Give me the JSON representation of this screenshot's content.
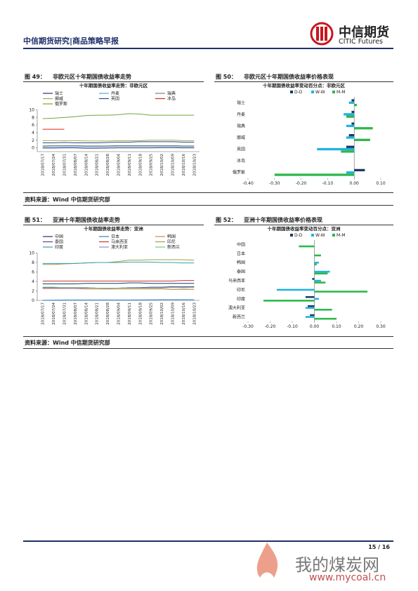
{
  "header": {
    "title": "中信期货研究|商品策略早报",
    "logo_cn": "中信期货",
    "logo_en": "CITIC Futures"
  },
  "figures": [
    {
      "label": "图 49：",
      "caption": "非欧元区十年期国债收益率走势",
      "chart_data": {
        "type": "line",
        "title": "十年期国债收益率走势：非欧元区",
        "categories": [
          "2018/07/17",
          "2018/07/24",
          "2018/07/31",
          "2018/08/07",
          "2018/08/14",
          "2018/08/21",
          "2018/08/28",
          "2018/09/04",
          "2018/09/11",
          "2018/09/18",
          "2018/09/25",
          "2018/10/02",
          "2018/10/09",
          "2018/10/16",
          "2018/10/23"
        ],
        "ylim": [
          -1,
          10
        ],
        "yticks": [
          0,
          2,
          4,
          6,
          8,
          10
        ],
        "series": [
          {
            "name": "瑞士",
            "color": "#1f3864",
            "values": [
              -0.05,
              -0.05,
              0,
              0,
              -0.1,
              -0.1,
              -0.05,
              0,
              0,
              0,
              0,
              0.05,
              0.05,
              0,
              0
            ]
          },
          {
            "name": "丹麦",
            "color": "#5ba3d9",
            "values": [
              0.3,
              0.3,
              0.35,
              0.35,
              0.3,
              0.3,
              0.35,
              0.4,
              0.4,
              0.4,
              0.4,
              0.4,
              0.4,
              0.35,
              0.35
            ]
          },
          {
            "name": "瑞典",
            "color": "#7f7f7f",
            "values": [
              0.5,
              0.6,
              0.6,
              0.6,
              0.5,
              0.5,
              0.5,
              0.6,
              0.6,
              0.6,
              0.6,
              0.6,
              0.6,
              0.5,
              0.5
            ]
          },
          {
            "name": "挪威",
            "color": "#a5a55a",
            "values": [
              1.9,
              1.9,
              1.9,
              1.9,
              1.8,
              1.8,
              1.8,
              1.9,
              1.9,
              1.9,
              2.0,
              2.0,
              2.0,
              1.9,
              1.9
            ]
          },
          {
            "name": "英国",
            "color": "#2e4a8a",
            "values": [
              1.3,
              1.3,
              1.4,
              1.3,
              1.3,
              1.3,
              1.4,
              1.5,
              1.5,
              1.6,
              1.6,
              1.6,
              1.6,
              1.5,
              1.5
            ]
          },
          {
            "name": "冰岛",
            "color": "#e02020",
            "values": [
              4.9,
              4.9,
              4.9,
              null,
              null,
              null,
              null,
              null,
              null,
              null,
              null,
              null,
              null,
              null,
              null
            ]
          },
          {
            "name": "俄罗斯",
            "color": "#70a83a",
            "values": [
              7.7,
              7.8,
              8.0,
              8.2,
              8.5,
              8.6,
              8.6,
              8.7,
              9.0,
              8.9,
              8.6,
              8.6,
              8.6,
              8.6,
              8.6
            ]
          }
        ]
      }
    },
    {
      "label": "图 50：",
      "caption": "非欧元区十年期国债收益率价格表现",
      "chart_data": {
        "type": "hbar",
        "title": "十年期国债收益率变动百分点：非欧元区",
        "categories": [
          "瑞士",
          "丹麦",
          "瑞典",
          "挪威",
          "英国",
          "冰岛",
          "俄罗斯"
        ],
        "xlim": [
          -0.4,
          0.1
        ],
        "xticks": [
          {
            "value": -0.4,
            "label": "-0.40"
          },
          {
            "value": -0.3,
            "label": "-0.30"
          },
          {
            "value": -0.2,
            "label": "-0.20"
          },
          {
            "value": -0.1,
            "label": "-0.10"
          },
          {
            "value": 0,
            "label": "0.00"
          },
          {
            "value": 0.1,
            "label": "0.10"
          }
        ],
        "series": [
          {
            "name": "D-D",
            "color": "#1f3864",
            "values": [
              -0.01,
              -0.01,
              -0.01,
              -0.02,
              -0.03,
              null,
              0.04
            ]
          },
          {
            "name": "W-W",
            "color": "#1fb4e0",
            "values": [
              -0.02,
              -0.04,
              -0.03,
              -0.03,
              -0.14,
              null,
              -0.03
            ]
          },
          {
            "name": "M-M",
            "color": "#2db84a",
            "values": [
              0.01,
              -0.03,
              0.07,
              0.06,
              -0.05,
              null,
              -0.3
            ]
          }
        ]
      }
    },
    {
      "label": "图 51：",
      "caption": "亚洲十年期国债收益率走势",
      "chart_data": {
        "type": "line",
        "title": "十年期国债收益率走势：亚洲",
        "categories": [
          "2018/07/17",
          "2018/07/24",
          "2018/07/31",
          "2018/08/07",
          "2018/08/14",
          "2018/08/21",
          "2018/08/28",
          "2018/09/04",
          "2018/09/11",
          "2018/09/18",
          "2018/09/25",
          "2018/10/02",
          "2018/10/09",
          "2018/10/16",
          "2018/10/23"
        ],
        "ylim": [
          0,
          10
        ],
        "yticks": [
          0,
          2,
          4,
          6,
          8,
          10
        ],
        "series": [
          {
            "name": "中国",
            "color": "#1f3864",
            "values": [
              3.5,
              3.5,
              3.5,
              3.5,
              3.6,
              3.6,
              3.6,
              3.6,
              3.7,
              3.7,
              3.6,
              3.6,
              3.6,
              3.6,
              3.6
            ]
          },
          {
            "name": "日本",
            "color": "#2a7fd4",
            "values": [
              0.04,
              0.05,
              0.1,
              0.1,
              0.1,
              0.1,
              0.1,
              0.1,
              0.1,
              0.12,
              0.13,
              0.15,
              0.15,
              0.15,
              0.15
            ]
          },
          {
            "name": "韩国",
            "color": "#c98a50",
            "values": [
              2.5,
              2.5,
              2.5,
              2.5,
              2.4,
              2.4,
              2.4,
              2.4,
              2.4,
              2.4,
              2.4,
              2.4,
              2.3,
              2.3,
              2.3
            ]
          },
          {
            "name": "泰国",
            "color": "#4a4a8a",
            "values": [
              2.7,
              2.7,
              2.7,
              2.7,
              2.7,
              2.6,
              2.6,
              2.6,
              2.7,
              2.7,
              2.8,
              2.8,
              2.9,
              2.9,
              2.9
            ]
          },
          {
            "name": "马来西亚",
            "color": "#c0392b",
            "values": [
              4.1,
              4.1,
              4.1,
              4.1,
              4.1,
              4.1,
              4.1,
              4.1,
              4.1,
              4.1,
              4.1,
              4.1,
              4.1,
              4.2,
              4.2
            ]
          },
          {
            "name": "印尼",
            "color": "#9aa04a",
            "values": [
              7.6,
              7.6,
              7.7,
              7.8,
              7.9,
              8.0,
              8.0,
              8.2,
              8.5,
              8.5,
              8.6,
              8.6,
              8.6,
              8.6,
              8.5
            ]
          },
          {
            "name": "印度",
            "color": "#3aa0a0",
            "values": [
              7.8,
              7.8,
              7.8,
              7.8,
              7.9,
              8.0,
              8.0,
              8.0,
              8.1,
              8.1,
              8.1,
              8.0,
              8.0,
              7.9,
              7.9
            ]
          },
          {
            "name": "澳大利亚",
            "color": "#9b8ac0",
            "values": [
              2.6,
              2.6,
              2.6,
              2.5,
              2.6,
              2.6,
              2.5,
              2.6,
              2.7,
              2.6,
              2.7,
              2.7,
              2.7,
              2.7,
              2.7
            ]
          },
          {
            "name": "新西兰",
            "color": "#7fbf7f",
            "values": [
              2.8,
              2.8,
              2.7,
              2.7,
              2.7,
              2.6,
              2.6,
              2.6,
              2.6,
              2.6,
              2.6,
              2.6,
              2.7,
              2.6,
              2.7
            ]
          }
        ]
      }
    },
    {
      "label": "图 52：",
      "caption": "亚洲十年期国债收益率价格表现",
      "chart_data": {
        "type": "hbar",
        "title": "十年期国债收益率变动百分点：亚洲",
        "categories": [
          "中国",
          "日本",
          "韩国",
          "泰国",
          "马来西亚",
          "印尼",
          "印度",
          "澳大利亚",
          "新西兰"
        ],
        "xlim": [
          -0.3,
          0.3
        ],
        "xticks": [
          {
            "value": -0.3,
            "label": "-0.30"
          },
          {
            "value": -0.2,
            "label": "-0.20"
          },
          {
            "value": -0.1,
            "label": "-0.10"
          },
          {
            "value": 0,
            "label": "0.00"
          },
          {
            "value": 0.1,
            "label": "0.10"
          },
          {
            "value": 0.2,
            "label": "0.20"
          },
          {
            "value": 0.3,
            "label": "0.30"
          }
        ],
        "series": [
          {
            "name": "D-D",
            "color": "#1f3864",
            "values": [
              0,
              null,
              null,
              null,
              -0.01,
              null,
              -0.04,
              -0.03,
              -0.02
            ]
          },
          {
            "name": "W-W",
            "color": "#1fb4e0",
            "values": [
              0,
              null,
              0.02,
              0.07,
              0.03,
              -0.17,
              0.02,
              -0.04,
              -0.04
            ]
          },
          {
            "name": "M-M",
            "color": "#2db84a",
            "values": [
              -0.07,
              0.03,
              0.01,
              0.06,
              0.05,
              0.24,
              -0.23,
              0.08,
              0.1
            ]
          }
        ]
      }
    }
  ],
  "sources": [
    "资料来源：Wind  中信期货研究部",
    "资料来源：Wind  中信期货研究部"
  ],
  "page": "15 / 16",
  "watermark": {
    "cn": "我的煤炭网",
    "url": "www.mycoal.cn"
  }
}
